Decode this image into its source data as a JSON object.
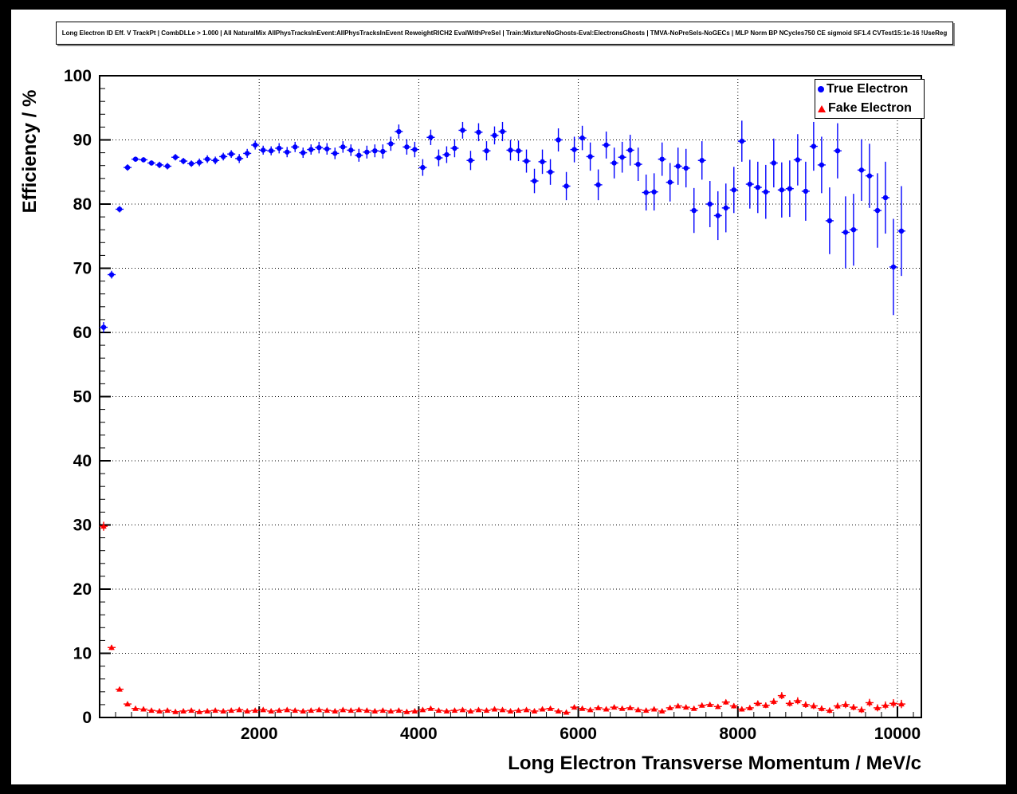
{
  "chart_data": {
    "type": "scatter",
    "title": "Long Electron ID Eff. V TrackPt | CombDLLe > 1.000 | All NaturalMix AllPhysTracksInEvent:AllPhysTracksInEvent ReweightRICH2 EvalWithPreSel | Train:MixtureNoGhosts-Eval:ElectronsGhosts | TMVA-NoPreSels-NoGECs | MLP Norm BP NCycles750 CE sigmoid SF1.4 CVTest15:1e-16 !UseReg",
    "xlabel": "Long Electron Transverse Momentum / MeV/c",
    "ylabel": "Efficiency / %",
    "xlim": [
      0,
      10300
    ],
    "ylim": [
      0,
      100
    ],
    "x_major_ticks": [
      2000,
      4000,
      6000,
      8000,
      10000
    ],
    "y_major_ticks": [
      0,
      10,
      20,
      30,
      40,
      50,
      60,
      70,
      80,
      90,
      100
    ],
    "x_minor_step": 200,
    "y_minor_step": 2,
    "grid": "dotted",
    "legend_position": "top-right",
    "x_bin_halfwidth": 50,
    "x": [
      50,
      150,
      250,
      350,
      450,
      550,
      650,
      750,
      850,
      950,
      1050,
      1150,
      1250,
      1350,
      1450,
      1550,
      1650,
      1750,
      1850,
      1950,
      2050,
      2150,
      2250,
      2350,
      2450,
      2550,
      2650,
      2750,
      2850,
      2950,
      3050,
      3150,
      3250,
      3350,
      3450,
      3550,
      3650,
      3750,
      3850,
      3950,
      4050,
      4150,
      4250,
      4350,
      4450,
      4550,
      4650,
      4750,
      4850,
      4950,
      5050,
      5150,
      5250,
      5350,
      5450,
      5550,
      5650,
      5750,
      5850,
      5950,
      6050,
      6150,
      6250,
      6350,
      6450,
      6550,
      6650,
      6750,
      6850,
      6950,
      7050,
      7150,
      7250,
      7350,
      7450,
      7550,
      7650,
      7750,
      7850,
      7950,
      8050,
      8150,
      8250,
      8350,
      8450,
      8550,
      8650,
      8750,
      8850,
      8950,
      9050,
      9150,
      9250,
      9350,
      9450,
      9550,
      9650,
      9750,
      9850,
      9950,
      10050
    ],
    "series": [
      {
        "name": "True Electron",
        "color": "#0000ff",
        "marker": "circle",
        "y": [
          60.8,
          69.0,
          79.2,
          85.7,
          87.0,
          86.9,
          86.4,
          86.1,
          85.9,
          87.3,
          86.7,
          86.3,
          86.5,
          87.0,
          86.8,
          87.4,
          87.8,
          87.1,
          87.9,
          89.2,
          88.4,
          88.3,
          88.7,
          88.1,
          88.9,
          88.0,
          88.5,
          88.8,
          88.6,
          87.9,
          88.9,
          88.4,
          87.6,
          88.1,
          88.3,
          88.2,
          89.4,
          91.3,
          88.9,
          88.5,
          85.7,
          90.4,
          87.2,
          87.7,
          88.7,
          91.5,
          86.8,
          91.2,
          88.3,
          90.7,
          91.3,
          88.4,
          88.3,
          86.7,
          83.6,
          86.6,
          85.0,
          90.0,
          82.8,
          88.5,
          90.3,
          87.4,
          83.0,
          89.2,
          86.4,
          87.3,
          88.4,
          86.2,
          81.8,
          81.9,
          87.0,
          83.4,
          85.9,
          85.6,
          79.0,
          86.8,
          80.0,
          78.2,
          79.4,
          82.2,
          89.8,
          83.1,
          82.6,
          81.9,
          86.4,
          82.2,
          82.4,
          86.9,
          82.0,
          89.0,
          86.1,
          77.4,
          88.3,
          75.6,
          76.0,
          85.3,
          84.4,
          79.0,
          81.0,
          70.2,
          75.8
        ],
        "ey": [
          0.8,
          0.6,
          0.5,
          0.5,
          0.4,
          0.4,
          0.4,
          0.5,
          0.5,
          0.5,
          0.5,
          0.5,
          0.6,
          0.6,
          0.6,
          0.6,
          0.6,
          0.7,
          0.7,
          0.7,
          0.7,
          0.7,
          0.8,
          0.8,
          0.8,
          0.8,
          0.8,
          0.9,
          0.9,
          0.9,
          0.9,
          0.9,
          1.0,
          1.0,
          1.0,
          1.1,
          1.1,
          1.1,
          1.2,
          1.2,
          1.3,
          1.2,
          1.3,
          1.3,
          1.4,
          1.3,
          1.5,
          1.4,
          1.5,
          1.4,
          1.5,
          1.6,
          1.6,
          1.8,
          1.9,
          1.9,
          2.0,
          1.8,
          2.2,
          2.0,
          1.9,
          2.2,
          2.4,
          2.1,
          2.4,
          2.4,
          2.4,
          2.6,
          2.8,
          2.9,
          2.6,
          3.0,
          2.9,
          3.0,
          3.5,
          3.0,
          3.6,
          3.8,
          3.8,
          3.6,
          3.2,
          3.8,
          4.0,
          4.2,
          3.8,
          4.3,
          4.4,
          4.0,
          4.6,
          3.8,
          4.4,
          5.2,
          4.3,
          5.6,
          5.6,
          4.8,
          5.0,
          5.8,
          5.6,
          7.5,
          7.0
        ]
      },
      {
        "name": "Fake Electron",
        "color": "#ff0000",
        "marker": "triangle",
        "y": [
          29.8,
          10.9,
          4.4,
          2.1,
          1.4,
          1.3,
          1.1,
          1.0,
          1.1,
          0.9,
          1.0,
          1.1,
          0.9,
          1.0,
          1.1,
          1.0,
          1.1,
          1.2,
          1.0,
          1.1,
          1.2,
          1.0,
          1.1,
          1.2,
          1.1,
          1.0,
          1.1,
          1.2,
          1.1,
          1.0,
          1.2,
          1.1,
          1.2,
          1.1,
          1.0,
          1.1,
          1.0,
          1.1,
          0.9,
          1.0,
          1.2,
          1.4,
          1.1,
          1.0,
          1.1,
          1.2,
          1.0,
          1.2,
          1.1,
          1.3,
          1.2,
          1.0,
          1.1,
          1.2,
          1.0,
          1.3,
          1.4,
          1.0,
          0.8,
          1.6,
          1.4,
          1.2,
          1.5,
          1.3,
          1.6,
          1.4,
          1.5,
          1.2,
          1.1,
          1.3,
          1.0,
          1.5,
          1.8,
          1.6,
          1.4,
          1.9,
          2.0,
          1.7,
          2.4,
          1.8,
          1.3,
          1.5,
          2.2,
          1.9,
          2.5,
          3.4,
          2.2,
          2.6,
          2.0,
          1.8,
          1.4,
          1.1,
          1.8,
          2.0,
          1.6,
          1.2,
          2.3,
          1.5,
          1.9,
          2.2,
          2.1
        ],
        "ey": [
          0.7,
          0.4,
          0.3,
          0.2,
          0.15,
          0.15,
          0.12,
          0.12,
          0.12,
          0.12,
          0.12,
          0.12,
          0.12,
          0.12,
          0.13,
          0.13,
          0.13,
          0.13,
          0.13,
          0.14,
          0.14,
          0.14,
          0.14,
          0.15,
          0.15,
          0.15,
          0.15,
          0.16,
          0.16,
          0.16,
          0.16,
          0.17,
          0.17,
          0.17,
          0.17,
          0.18,
          0.18,
          0.18,
          0.18,
          0.19,
          0.19,
          0.19,
          0.2,
          0.2,
          0.2,
          0.2,
          0.21,
          0.21,
          0.21,
          0.22,
          0.22,
          0.22,
          0.23,
          0.23,
          0.24,
          0.24,
          0.25,
          0.25,
          0.25,
          0.26,
          0.26,
          0.27,
          0.28,
          0.28,
          0.29,
          0.3,
          0.3,
          0.3,
          0.31,
          0.32,
          0.32,
          0.33,
          0.34,
          0.35,
          0.35,
          0.36,
          0.37,
          0.38,
          0.4,
          0.4,
          0.38,
          0.4,
          0.45,
          0.45,
          0.5,
          0.55,
          0.5,
          0.55,
          0.5,
          0.5,
          0.45,
          0.45,
          0.5,
          0.55,
          0.5,
          0.5,
          0.6,
          0.55,
          0.6,
          0.65,
          0.65
        ]
      }
    ]
  }
}
